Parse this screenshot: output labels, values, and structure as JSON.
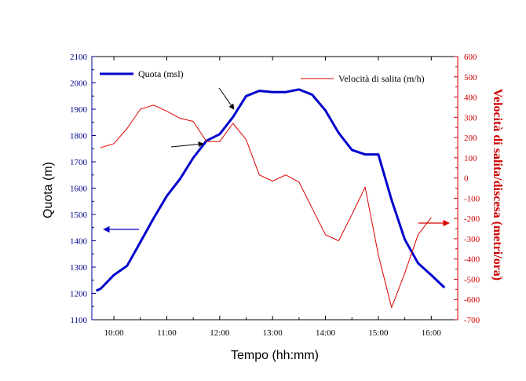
{
  "chart_data": {
    "type": "line",
    "xlabel": "Tempo (hh:mm)",
    "ylabel_left": "Quota (m)",
    "ylabel_right": "Velocità di salita/discesa (metri/ora)",
    "x_ticks": [
      "10:00",
      "11:00",
      "12:00",
      "13:00",
      "14:00",
      "15:00",
      "16:00"
    ],
    "xlim": [
      "09:35",
      "16:30"
    ],
    "ylim_left": [
      1100,
      2100
    ],
    "ylim_right": [
      -700,
      600
    ],
    "y_ticks_left": [
      1100,
      1200,
      1300,
      1400,
      1500,
      1600,
      1700,
      1800,
      1900,
      2000,
      2100
    ],
    "y_ticks_right": [
      -700,
      -600,
      -500,
      -400,
      -300,
      -200,
      -100,
      0,
      100,
      200,
      300,
      400,
      500,
      600
    ],
    "grid": false,
    "series": [
      {
        "name": "Quota (msl)",
        "axis": "left",
        "color": "#0000cc",
        "x": [
          "09:40",
          "09:45",
          "10:00",
          "10:15",
          "10:30",
          "10:45",
          "11:00",
          "11:15",
          "11:30",
          "11:45",
          "12:00",
          "12:15",
          "12:30",
          "12:45",
          "13:00",
          "13:15",
          "13:30",
          "13:45",
          "14:00",
          "14:15",
          "14:30",
          "14:45",
          "15:00",
          "15:15",
          "15:30",
          "15:45",
          "16:00",
          "16:15"
        ],
        "values": [
          1210,
          1218,
          1270,
          1305,
          1395,
          1485,
          1570,
          1635,
          1715,
          1780,
          1805,
          1870,
          1950,
          1970,
          1965,
          1965,
          1975,
          1955,
          1895,
          1810,
          1745,
          1728,
          1728,
          1555,
          1405,
          1315,
          1270,
          1222
        ]
      },
      {
        "name": "Velocità di salita (m/h)",
        "axis": "right",
        "color": "#dd0000",
        "x": [
          "09:45",
          "10:00",
          "10:15",
          "10:30",
          "10:45",
          "11:00",
          "11:15",
          "11:30",
          "11:45",
          "12:00",
          "12:15",
          "12:30",
          "12:45",
          "13:00",
          "13:15",
          "13:30",
          "13:45",
          "14:00",
          "14:15",
          "14:30",
          "14:45",
          "15:00",
          "15:15",
          "15:30",
          "15:45",
          "16:00"
        ],
        "values": [
          150,
          170,
          245,
          340,
          360,
          330,
          295,
          280,
          180,
          180,
          270,
          190,
          15,
          -15,
          15,
          -20,
          -150,
          -280,
          -310,
          -180,
          -45,
          -380,
          -640,
          -470,
          -280,
          -195
        ]
      }
    ],
    "legend": {
      "position": "top",
      "entries": [
        "Quota (msl)",
        "Velocità di salita (m/h)"
      ]
    }
  }
}
